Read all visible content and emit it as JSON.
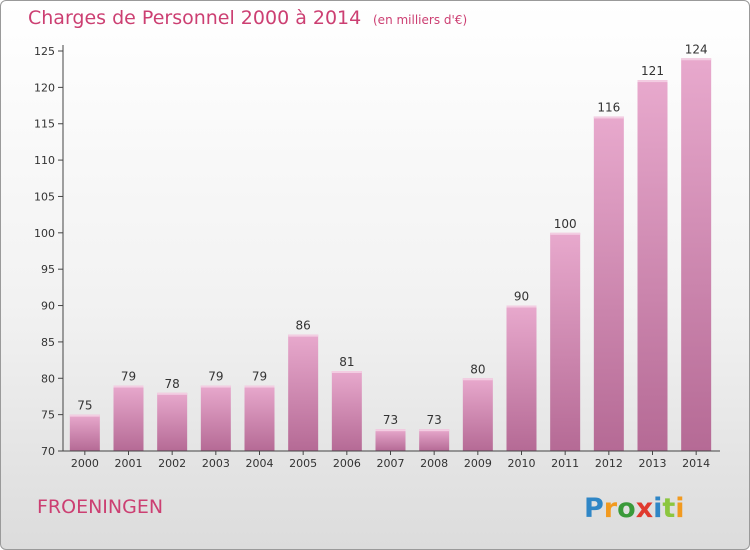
{
  "header": {
    "title": "Charges de Personnel 2000 à 2014",
    "subtitle": "(en milliers d'€)"
  },
  "footer": {
    "town": "FROENINGEN",
    "logo": "Proxiti"
  },
  "colors": {
    "title": "#cc3f72",
    "bar_light": "#e8a9cd",
    "bar_dark": "#b56a95",
    "axis": "#444444"
  },
  "chart_data": {
    "type": "bar",
    "categories": [
      "2000",
      "2001",
      "2002",
      "2003",
      "2004",
      "2005",
      "2006",
      "2007",
      "2008",
      "2009",
      "2010",
      "2011",
      "2012",
      "2013",
      "2014"
    ],
    "values": [
      75,
      79,
      78,
      79,
      79,
      86,
      81,
      73,
      73,
      80,
      90,
      100,
      116,
      121,
      124
    ],
    "ylim": [
      70,
      125
    ],
    "yticks": [
      70,
      75,
      80,
      85,
      90,
      95,
      100,
      105,
      110,
      115,
      120,
      125
    ],
    "grid": false,
    "legend": "none"
  }
}
